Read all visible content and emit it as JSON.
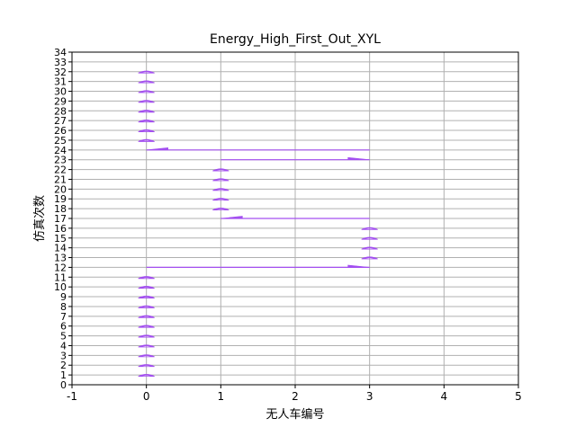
{
  "chart_data": {
    "type": "line",
    "title": "Energy_High_First_Out_XYL",
    "xlabel": "无人车编号",
    "ylabel": "仿真次数",
    "xlim": [
      -1,
      5
    ],
    "ylim": [
      0,
      34
    ],
    "xticks": [
      "-1",
      "0",
      "1",
      "2",
      "3",
      "4",
      "5"
    ],
    "yticks": [
      "0",
      "1",
      "2",
      "3",
      "4",
      "5",
      "6",
      "7",
      "8",
      "9",
      "10",
      "11",
      "12",
      "13",
      "14",
      "15",
      "16",
      "17",
      "18",
      "19",
      "20",
      "21",
      "22",
      "23",
      "24",
      "25",
      "26",
      "27",
      "28",
      "29",
      "30",
      "31",
      "32",
      "33",
      "34"
    ],
    "grid": true,
    "color": "#a34ff0",
    "sequence": [
      {
        "sim": 1,
        "vehicle": 0
      },
      {
        "sim": 2,
        "vehicle": 0
      },
      {
        "sim": 3,
        "vehicle": 0
      },
      {
        "sim": 4,
        "vehicle": 0
      },
      {
        "sim": 5,
        "vehicle": 0
      },
      {
        "sim": 6,
        "vehicle": 0
      },
      {
        "sim": 7,
        "vehicle": 0
      },
      {
        "sim": 8,
        "vehicle": 0
      },
      {
        "sim": 9,
        "vehicle": 0
      },
      {
        "sim": 10,
        "vehicle": 0
      },
      {
        "sim": 11,
        "vehicle": 0
      },
      {
        "sim": 12,
        "vehicle": 0
      },
      {
        "sim": 13,
        "vehicle": 3
      },
      {
        "sim": 14,
        "vehicle": 3
      },
      {
        "sim": 15,
        "vehicle": 3
      },
      {
        "sim": 16,
        "vehicle": 3
      },
      {
        "sim": 17,
        "vehicle": 3
      },
      {
        "sim": 18,
        "vehicle": 1
      },
      {
        "sim": 19,
        "vehicle": 1
      },
      {
        "sim": 20,
        "vehicle": 1
      },
      {
        "sim": 21,
        "vehicle": 1
      },
      {
        "sim": 22,
        "vehicle": 1
      },
      {
        "sim": 23,
        "vehicle": 1
      },
      {
        "sim": 24,
        "vehicle": 3
      },
      {
        "sim": 25,
        "vehicle": 0
      },
      {
        "sim": 26,
        "vehicle": 0
      },
      {
        "sim": 27,
        "vehicle": 0
      },
      {
        "sim": 28,
        "vehicle": 0
      },
      {
        "sim": 29,
        "vehicle": 0
      },
      {
        "sim": 30,
        "vehicle": 0
      },
      {
        "sim": 31,
        "vehicle": 0
      },
      {
        "sim": 32,
        "vehicle": 0
      },
      {
        "sim": 33,
        "vehicle": 0
      }
    ]
  }
}
